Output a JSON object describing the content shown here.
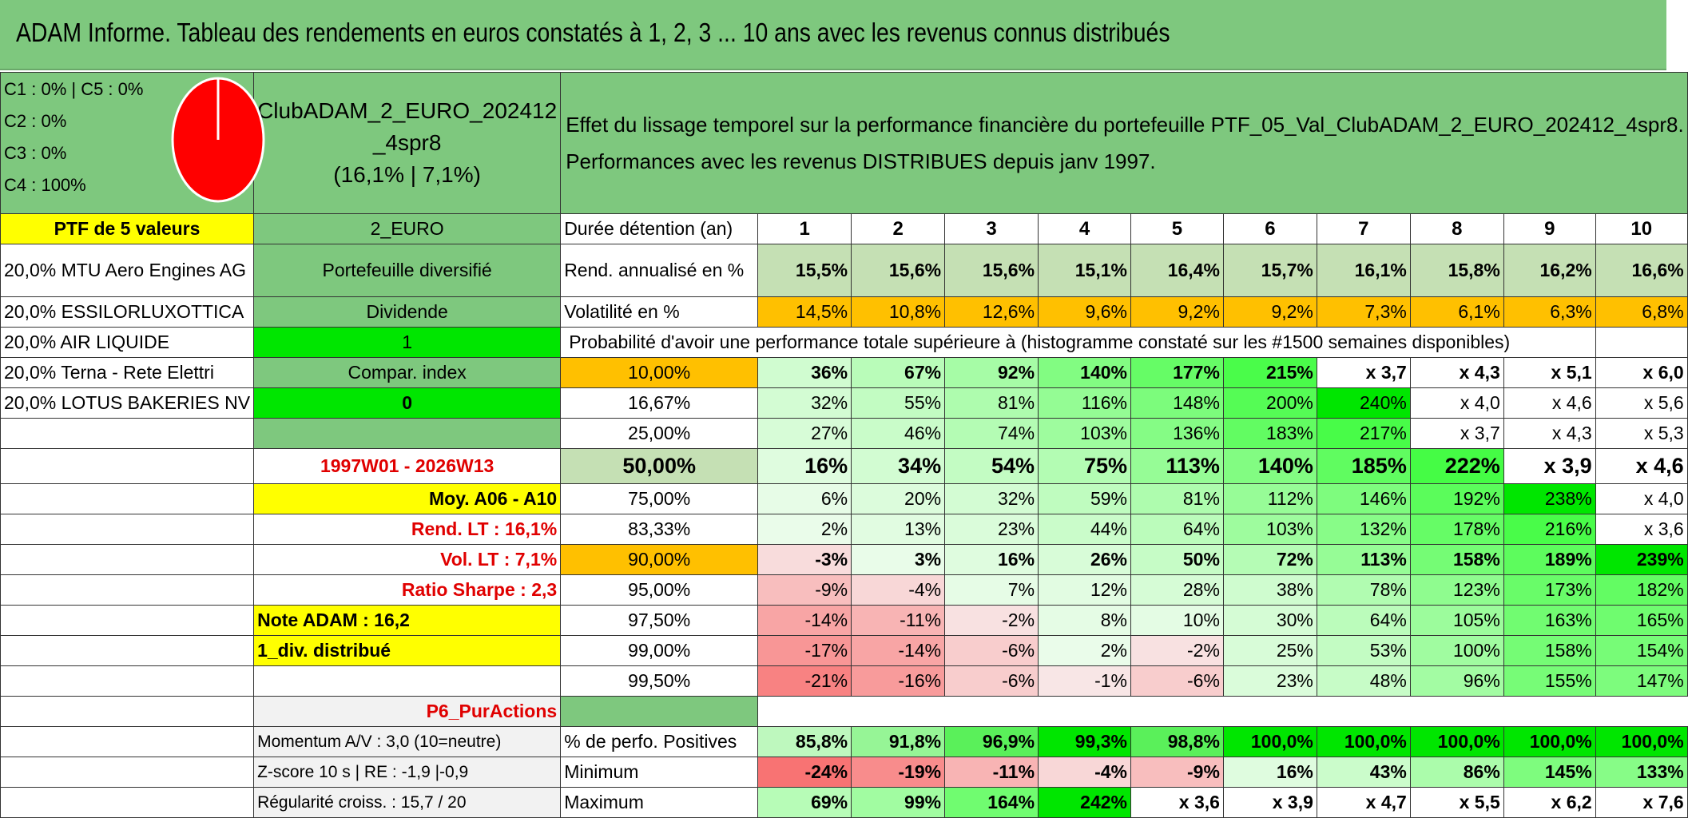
{
  "title": "ADAM Informe. Tableau des rendements en euros constatés à 1, 2, 3 ... 10 ans avec les revenus connus distribués",
  "allocation": [
    "C1 : 0% | C5 : 0%",
    "C2 : 0%",
    "C3 : 0%",
    "C4 : 100%"
  ],
  "pie_color": "#ff0000",
  "fund_name_l1": "ClubADAM_2_EURO_202412",
  "fund_name_l2": "_4spr8",
  "fund_stats": "(16,1% | 7,1%)",
  "description_l1": "Effet du lissage temporel sur la performance financière du portefeuille PTF_05_Val_ClubADAM_2_EURO_202412_4spr8.",
  "description_l2": "Performances avec les revenus DISTRIBUES depuis janv 1997.",
  "ptf_label": "PTF de 5 valeurs",
  "code": "2_EURO",
  "holdings": [
    "20,0% MTU Aero Engines AG",
    "20,0% ESSILORLUXOTTICA",
    "20,0% AIR LIQUIDE",
    "20,0% Terna - Rete Elettri",
    "20,0% LOTUS BAKERIES NV"
  ],
  "side": {
    "portfolio_type": "Portefeuille diversifié",
    "dividend_label": "Dividende",
    "dividend_value": "1",
    "compar_label": "Compar. index",
    "compar_value": "0",
    "period": "1997W01 - 2026W13",
    "moy": "Moy. A06 - A10",
    "rend_lt": "Rend. LT : 16,1%",
    "vol_lt": "Vol. LT : 7,1%",
    "sharpe": "Ratio Sharpe : 2,3",
    "note": "Note ADAM : 16,2",
    "div": "1_div. distribué",
    "p6": "P6_PurActions",
    "momentum": "Momentum A/V : 3,0 (10=neutre)",
    "zscore": "Z-score 10 s | RE : -1,9 |-0,9",
    "regularite": "Régularité croiss. : 15,7 / 20"
  },
  "labels": {
    "duree": "Durée détention (an)",
    "rend": "Rend. annualisé en %",
    "vol": "Volatilité en %",
    "proba": "Probabilité d'avoir une performance totale supérieure à (histogramme constaté sur les #1500 semaines disponibles)",
    "pos": "% de perfo. Positives",
    "min": "Minimum",
    "max": "Maximum"
  },
  "years": [
    "1",
    "2",
    "3",
    "4",
    "5",
    "6",
    "7",
    "8",
    "9",
    "10"
  ],
  "rend": [
    "15,5%",
    "15,6%",
    "15,6%",
    "15,1%",
    "16,4%",
    "15,7%",
    "16,1%",
    "15,8%",
    "16,2%",
    "16,6%"
  ],
  "vol": [
    "14,5%",
    "10,8%",
    "12,6%",
    "9,6%",
    "9,2%",
    "9,2%",
    "7,3%",
    "6,1%",
    "6,3%",
    "6,8%"
  ],
  "quantiles": [
    {
      "q": "10,00%",
      "v": [
        "36%",
        "67%",
        "92%",
        "140%",
        "177%",
        "215%",
        "x 3,7",
        "x 4,3",
        "x 5,1",
        "x 6,0"
      ]
    },
    {
      "q": "16,67%",
      "v": [
        "32%",
        "55%",
        "81%",
        "116%",
        "148%",
        "200%",
        "240%",
        "x 4,0",
        "x 4,6",
        "x 5,6"
      ]
    },
    {
      "q": "25,00%",
      "v": [
        "27%",
        "46%",
        "74%",
        "103%",
        "136%",
        "183%",
        "217%",
        "x 3,7",
        "x 4,3",
        "x 5,3"
      ]
    },
    {
      "q": "50,00%",
      "v": [
        "16%",
        "34%",
        "54%",
        "75%",
        "113%",
        "140%",
        "185%",
        "222%",
        "x 3,9",
        "x 4,6"
      ]
    },
    {
      "q": "75,00%",
      "v": [
        "6%",
        "20%",
        "32%",
        "59%",
        "81%",
        "112%",
        "146%",
        "192%",
        "238%",
        "x 4,0"
      ]
    },
    {
      "q": "83,33%",
      "v": [
        "2%",
        "13%",
        "23%",
        "44%",
        "64%",
        "103%",
        "132%",
        "178%",
        "216%",
        "x 3,6"
      ]
    },
    {
      "q": "90,00%",
      "v": [
        "-3%",
        "3%",
        "16%",
        "26%",
        "50%",
        "72%",
        "113%",
        "158%",
        "189%",
        "239%"
      ]
    },
    {
      "q": "95,00%",
      "v": [
        "-9%",
        "-4%",
        "7%",
        "12%",
        "28%",
        "38%",
        "78%",
        "123%",
        "173%",
        "182%"
      ]
    },
    {
      "q": "97,50%",
      "v": [
        "-14%",
        "-11%",
        "-2%",
        "8%",
        "10%",
        "30%",
        "64%",
        "105%",
        "163%",
        "165%"
      ]
    },
    {
      "q": "99,00%",
      "v": [
        "-17%",
        "-14%",
        "-6%",
        "2%",
        "-2%",
        "25%",
        "53%",
        "100%",
        "158%",
        "154%"
      ]
    },
    {
      "q": "99,50%",
      "v": [
        "-21%",
        "-16%",
        "-6%",
        "-1%",
        "-6%",
        "23%",
        "48%",
        "96%",
        "155%",
        "147%"
      ]
    }
  ],
  "positives": [
    "85,8%",
    "91,8%",
    "96,9%",
    "99,3%",
    "98,8%",
    "100,0%",
    "100,0%",
    "100,0%",
    "100,0%",
    "100,0%"
  ],
  "minimum": [
    "-24%",
    "-19%",
    "-11%",
    "-4%",
    "-9%",
    "16%",
    "43%",
    "86%",
    "145%",
    "133%"
  ],
  "maximum": [
    "69%",
    "99%",
    "164%",
    "242%",
    "x 3,6",
    "x 3,9",
    "x 4,7",
    "x 5,5",
    "x 6,2",
    "x 7,6"
  ]
}
